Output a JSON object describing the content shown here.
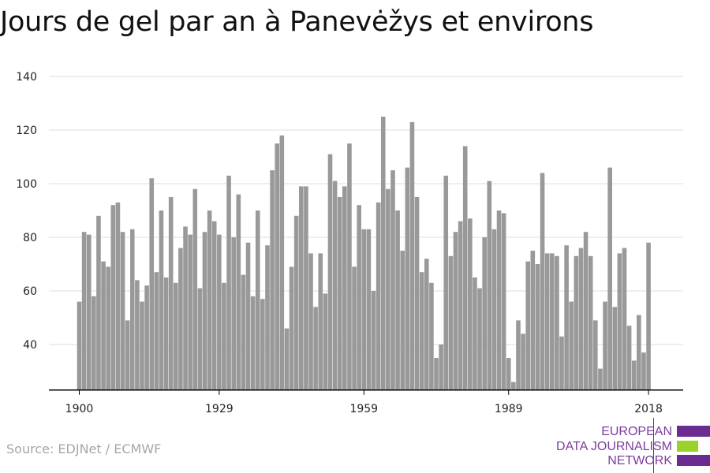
{
  "chart_data": {
    "type": "bar",
    "title": "Jours de gel par an à Panevėžys et environs",
    "xlabel": "",
    "ylabel": "",
    "x": [
      1900,
      1901,
      1902,
      1903,
      1904,
      1905,
      1906,
      1907,
      1908,
      1909,
      1910,
      1911,
      1912,
      1913,
      1914,
      1915,
      1916,
      1917,
      1918,
      1919,
      1920,
      1921,
      1922,
      1923,
      1924,
      1925,
      1926,
      1927,
      1928,
      1929,
      1930,
      1931,
      1932,
      1933,
      1934,
      1935,
      1936,
      1937,
      1938,
      1939,
      1940,
      1941,
      1942,
      1943,
      1944,
      1945,
      1946,
      1947,
      1948,
      1949,
      1950,
      1951,
      1952,
      1953,
      1954,
      1955,
      1956,
      1957,
      1958,
      1959,
      1960,
      1961,
      1962,
      1963,
      1964,
      1965,
      1966,
      1967,
      1968,
      1969,
      1970,
      1971,
      1972,
      1973,
      1974,
      1975,
      1976,
      1977,
      1978,
      1979,
      1980,
      1981,
      1982,
      1983,
      1984,
      1985,
      1986,
      1987,
      1988,
      1989,
      1990,
      1991,
      1992,
      1993,
      1994,
      1995,
      1996,
      1997,
      1998,
      1999,
      2000,
      2001,
      2002,
      2003,
      2004,
      2005,
      2006,
      2007,
      2008,
      2009,
      2010,
      2011,
      2012,
      2013,
      2014,
      2015,
      2016,
      2017,
      2018
    ],
    "values": [
      56,
      82,
      81,
      58,
      88,
      71,
      69,
      92,
      93,
      82,
      49,
      83,
      64,
      56,
      62,
      102,
      67,
      90,
      65,
      95,
      63,
      76,
      84,
      81,
      98,
      61,
      82,
      90,
      86,
      81,
      63,
      103,
      80,
      96,
      66,
      78,
      58,
      90,
      57,
      77,
      105,
      115,
      118,
      46,
      69,
      88,
      99,
      99,
      74,
      54,
      74,
      59,
      111,
      101,
      95,
      99,
      115,
      69,
      92,
      83,
      83,
      60,
      93,
      125,
      98,
      105,
      90,
      75,
      106,
      123,
      95,
      67,
      72,
      63,
      35,
      40,
      103,
      73,
      82,
      86,
      114,
      87,
      65,
      61,
      80,
      101,
      83,
      90,
      89,
      35,
      26,
      49,
      44,
      71,
      75,
      70,
      104,
      74,
      74,
      73,
      43,
      77,
      56,
      73,
      76,
      82,
      73,
      49,
      31,
      56,
      106,
      54,
      74,
      76,
      47,
      34,
      51,
      37,
      78
    ],
    "xticks": [
      1900,
      1929,
      1959,
      1989,
      2018
    ],
    "yticks": [
      40,
      60,
      80,
      100,
      120,
      140
    ],
    "xlim": [
      1900,
      2018
    ],
    "ylim": [
      23,
      145
    ],
    "grid": true,
    "legend": "none",
    "bar_color": "#999999"
  },
  "source": "Source: EDJNet / ECMWF",
  "logo": {
    "lines": [
      "EUROPEAN",
      "DATA JOURNALISM",
      "NETWORK"
    ],
    "colors": [
      "#6b2c91",
      "#9ad12a",
      "#6b2c91"
    ]
  }
}
